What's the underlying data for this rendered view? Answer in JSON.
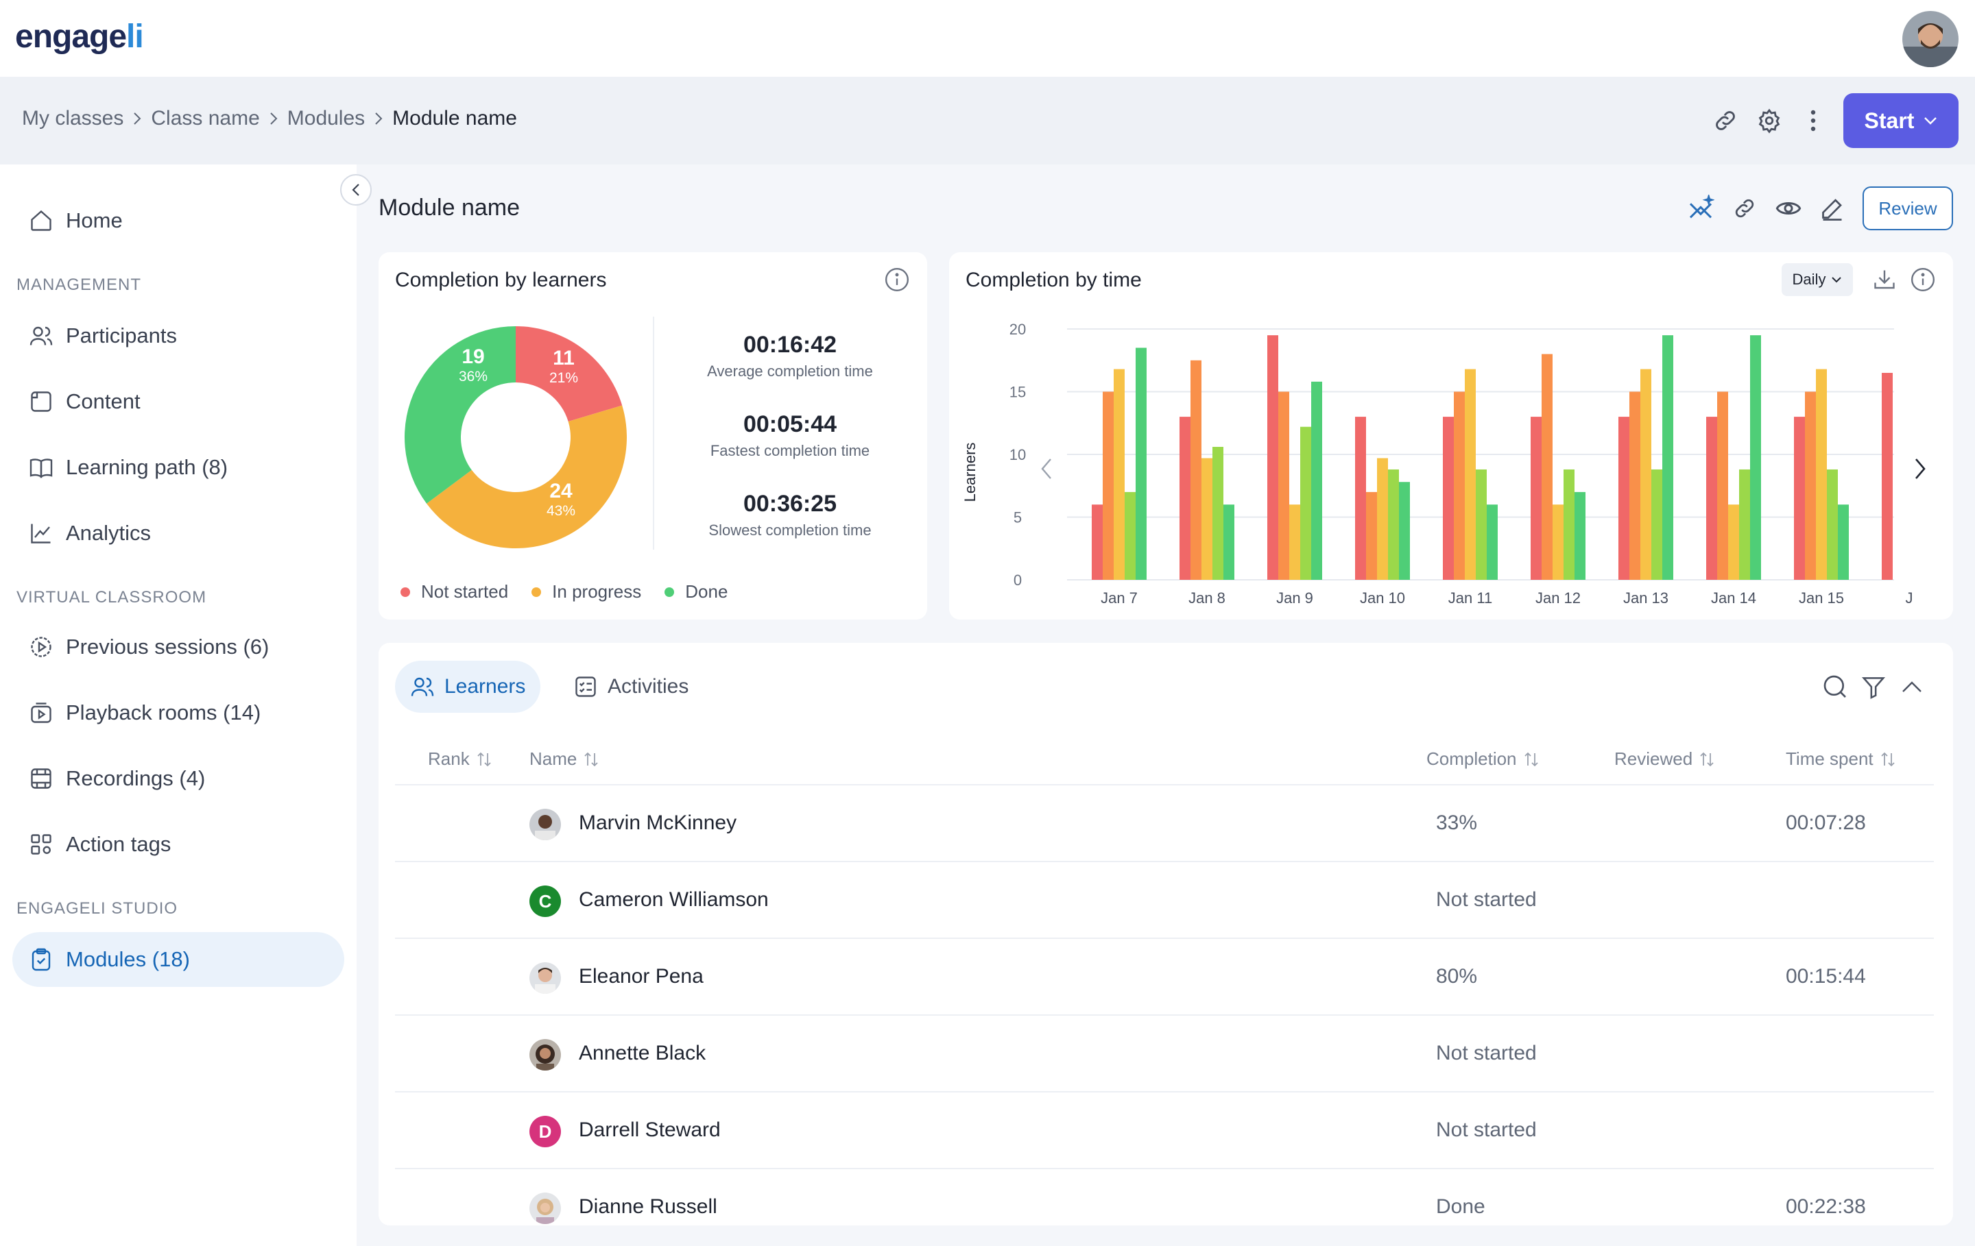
{
  "app": {
    "logo_main": "engage",
    "logo_accent": "li"
  },
  "breadcrumb": [
    "My classes",
    "Class name",
    "Modules",
    "Module name"
  ],
  "header": {
    "start_label": "Start"
  },
  "sidebar": {
    "home": "Home",
    "sections": {
      "management": "MANAGEMENT",
      "virtual": "VIRTUAL CLASSROOM",
      "studio": "ENGAGELI STUDIO"
    },
    "items": [
      {
        "label": "Participants",
        "icon": "participants-icon"
      },
      {
        "label": "Content",
        "icon": "content-icon"
      },
      {
        "label": "Learning path (8)",
        "icon": "book-icon"
      },
      {
        "label": "Analytics",
        "icon": "analytics-icon"
      },
      {
        "label": "Previous sessions (6)",
        "icon": "play-circle-icon"
      },
      {
        "label": "Playback rooms (14)",
        "icon": "playback-icon"
      },
      {
        "label": "Recordings (4)",
        "icon": "film-icon"
      },
      {
        "label": "Action tags",
        "icon": "qr-icon"
      },
      {
        "label": "Modules (18)",
        "icon": "clipboard-check-icon"
      }
    ]
  },
  "main": {
    "title": "Module name",
    "review_label": "Review"
  },
  "completion_learners": {
    "title": "Completion by learners",
    "slices": [
      {
        "label": "11",
        "pct": "21%"
      },
      {
        "label": "24",
        "pct": "43%"
      },
      {
        "label": "19",
        "pct": "36%"
      }
    ],
    "stats": [
      {
        "value": "00:16:42",
        "label": "Average completion time"
      },
      {
        "value": "00:05:44",
        "label": "Fastest completion time"
      },
      {
        "value": "00:36:25",
        "label": "Slowest completion time"
      }
    ],
    "legend": [
      "Not started",
      "In progress",
      "Done"
    ]
  },
  "completion_time": {
    "title": "Completion by time",
    "period": "Daily"
  },
  "colors": {
    "not_started": "#f16b6b",
    "in_progress": "#f5b13d",
    "done": "#4fce77",
    "series1": "#f06868",
    "series2": "#f9904a",
    "series3": "#f7c247",
    "series4": "#9bd84a",
    "series5": "#4fce77"
  },
  "chart_data": [
    {
      "type": "pie",
      "title": "Completion by learners",
      "categories": [
        "Not started",
        "In progress",
        "Done"
      ],
      "values": [
        11,
        24,
        19
      ]
    },
    {
      "type": "bar",
      "title": "Completion by time",
      "ylabel": "Learners",
      "ylim": [
        0,
        20
      ],
      "yticks": [
        "0",
        "5",
        "10",
        "15",
        "20"
      ],
      "categories": [
        "Jan 7",
        "Jan 8",
        "Jan 9",
        "Jan 10",
        "Jan 11",
        "Jan 12",
        "Jan 13",
        "Jan 14",
        "Jan 15",
        "J"
      ],
      "series": [
        {
          "values": [
            6,
            13,
            19.5,
            13,
            13,
            13,
            13,
            13,
            13,
            16.5
          ]
        },
        {
          "values": [
            15,
            17.5,
            15,
            7,
            15,
            18,
            15,
            15,
            15,
            null
          ]
        },
        {
          "values": [
            16.8,
            9.7,
            6,
            9.7,
            16.8,
            6,
            16.8,
            6,
            16.8,
            null
          ]
        },
        {
          "values": [
            7,
            10.6,
            12.2,
            8.8,
            8.8,
            8.8,
            8.8,
            8.8,
            8.8,
            null
          ]
        },
        {
          "values": [
            18.5,
            6,
            15.8,
            7.8,
            6,
            7,
            19.5,
            19.5,
            6,
            null
          ]
        }
      ]
    }
  ],
  "table": {
    "tabs": [
      "Learners",
      "Activities"
    ],
    "headers": [
      "Rank",
      "Name",
      "Completion",
      "Reviewed",
      "Time spent"
    ],
    "rows": [
      {
        "name": "Marvin McKinney",
        "completion": "33%",
        "time": "00:07:28",
        "avatar": "photo"
      },
      {
        "name": "Cameron Williamson",
        "completion": "Not started",
        "time": "",
        "avatar": "C",
        "color": "#1a8a2e"
      },
      {
        "name": "Eleanor Pena",
        "completion": "80%",
        "time": "00:15:44",
        "avatar": "photo"
      },
      {
        "name": "Annette Black",
        "completion": "Not started",
        "time": "",
        "avatar": "photo"
      },
      {
        "name": "Darrell Steward",
        "completion": "Not started",
        "time": "",
        "avatar": "D",
        "color": "#d6337c"
      },
      {
        "name": "Dianne Russell",
        "completion": "Done",
        "time": "00:22:38",
        "avatar": "photo"
      }
    ]
  }
}
